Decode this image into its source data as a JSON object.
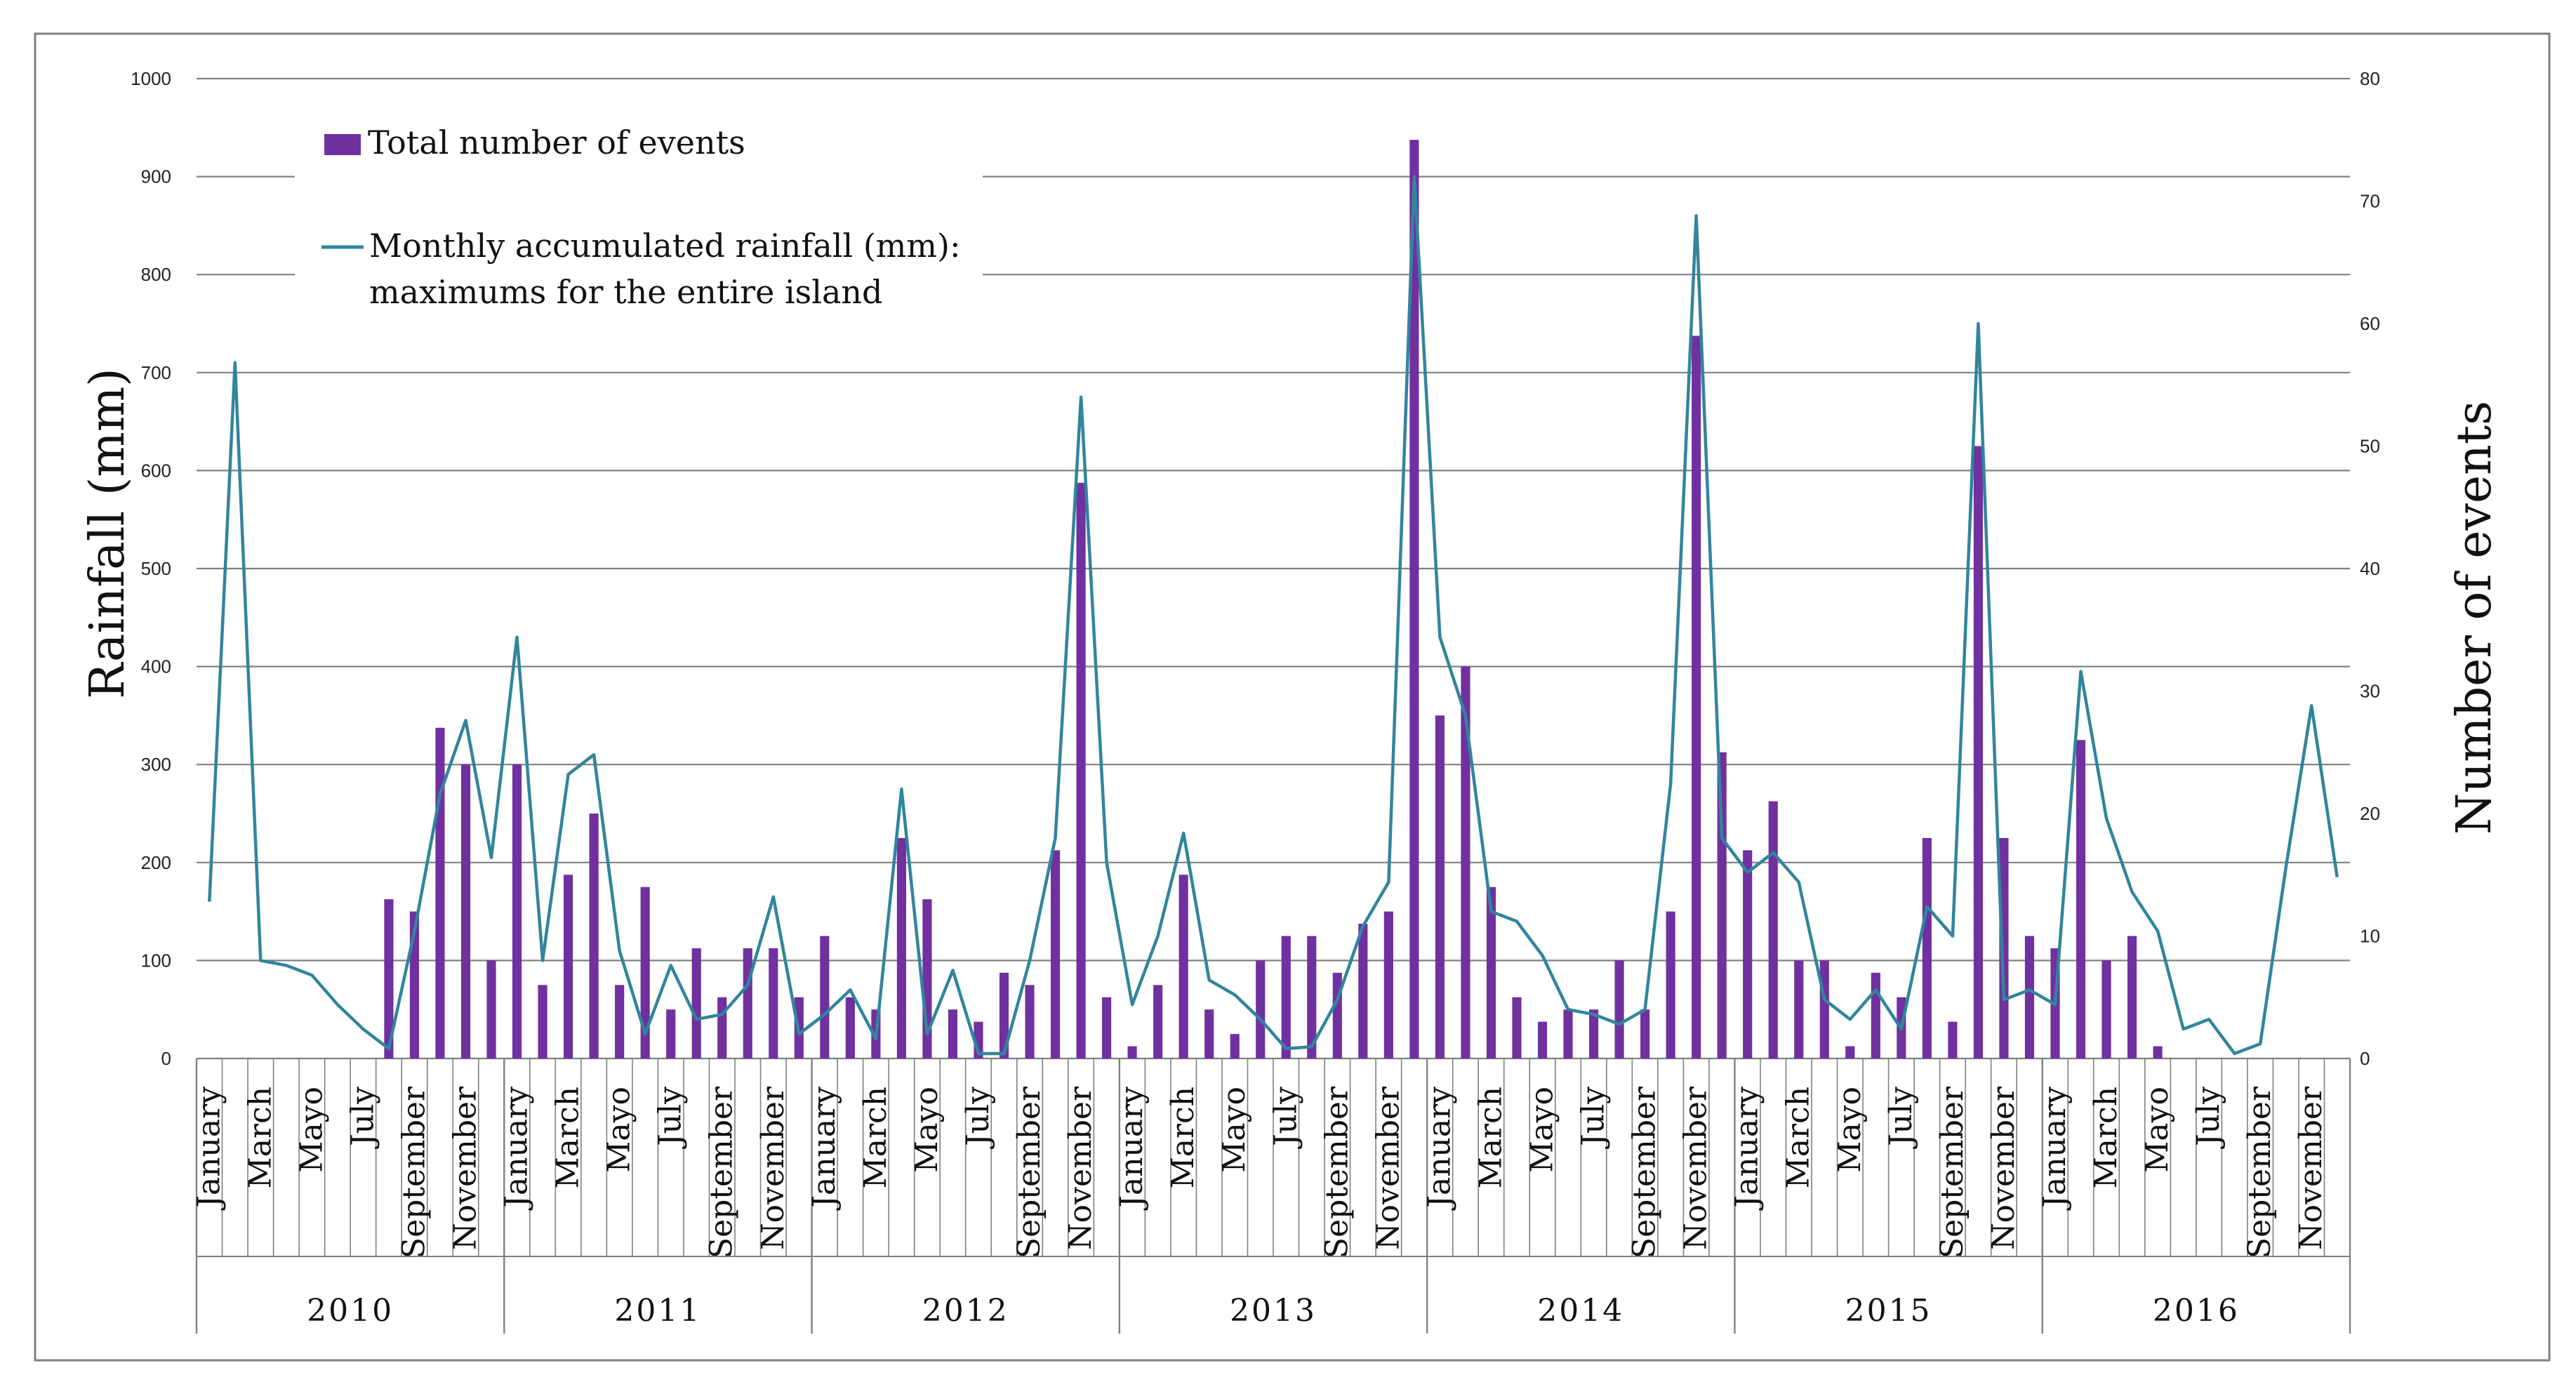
{
  "chart_data": {
    "type": "bar+line",
    "title": "",
    "ylabel": "Rainfall (mm)",
    "y2label": "Number of events",
    "ylim": [
      0,
      1000
    ],
    "y2lim": [
      0,
      80
    ],
    "yticks": [
      "0",
      "100",
      "200",
      "300",
      "400",
      "500",
      "600",
      "700",
      "800",
      "900",
      "1000"
    ],
    "y2ticks": [
      "0",
      "10",
      "20",
      "30",
      "40",
      "50",
      "60",
      "70",
      "80"
    ],
    "years": [
      "2010",
      "2011",
      "2012",
      "2013",
      "2014",
      "2015",
      "2016"
    ],
    "month_labels": [
      "January",
      "",
      "March",
      "",
      "Mayo",
      "",
      "July",
      "",
      "September",
      "",
      "November",
      ""
    ],
    "legend": {
      "bars": "Total number of events",
      "line_1": "Monthly accumulated rainfall (mm):",
      "line_2": "maximums for the entire island"
    },
    "colors": {
      "bars": "#7030A0",
      "line": "#31859C",
      "grid": "#808080"
    },
    "series": [
      {
        "name": "Total number of events",
        "axis": "right",
        "values": [
          0,
          0,
          0,
          0,
          0,
          0,
          0,
          13,
          12,
          27,
          24,
          8,
          24,
          6,
          15,
          20,
          6,
          14,
          4,
          9,
          5,
          9,
          9,
          5,
          10,
          5,
          4,
          18,
          13,
          4,
          3,
          7,
          6,
          17,
          47,
          5,
          1,
          6,
          15,
          4,
          2,
          8,
          10,
          10,
          7,
          11,
          12,
          75,
          28,
          32,
          14,
          5,
          3,
          4,
          4,
          8,
          4,
          12,
          59,
          25,
          17,
          21,
          8,
          8,
          1,
          7,
          5,
          18,
          3,
          50,
          18,
          10,
          9,
          26,
          8,
          10,
          1,
          0,
          0,
          0,
          0,
          0,
          0,
          0
        ]
      },
      {
        "name": "Monthly accumulated rainfall (mm): maximums for the entire island",
        "axis": "left",
        "values": [
          160,
          710,
          100,
          95,
          85,
          55,
          30,
          10,
          130,
          270,
          345,
          205,
          430,
          100,
          290,
          310,
          110,
          25,
          95,
          40,
          45,
          75,
          165,
          25,
          45,
          70,
          20,
          275,
          25,
          90,
          5,
          5,
          100,
          225,
          675,
          200,
          55,
          125,
          230,
          80,
          65,
          40,
          10,
          12,
          60,
          135,
          180,
          900,
          430,
          350,
          150,
          140,
          105,
          50,
          45,
          35,
          50,
          280,
          860,
          225,
          190,
          210,
          180,
          60,
          40,
          70,
          30,
          155,
          125,
          750,
          60,
          70,
          55,
          395,
          245,
          170,
          130,
          30,
          40,
          5,
          15,
          195,
          360,
          185
        ]
      }
    ]
  }
}
